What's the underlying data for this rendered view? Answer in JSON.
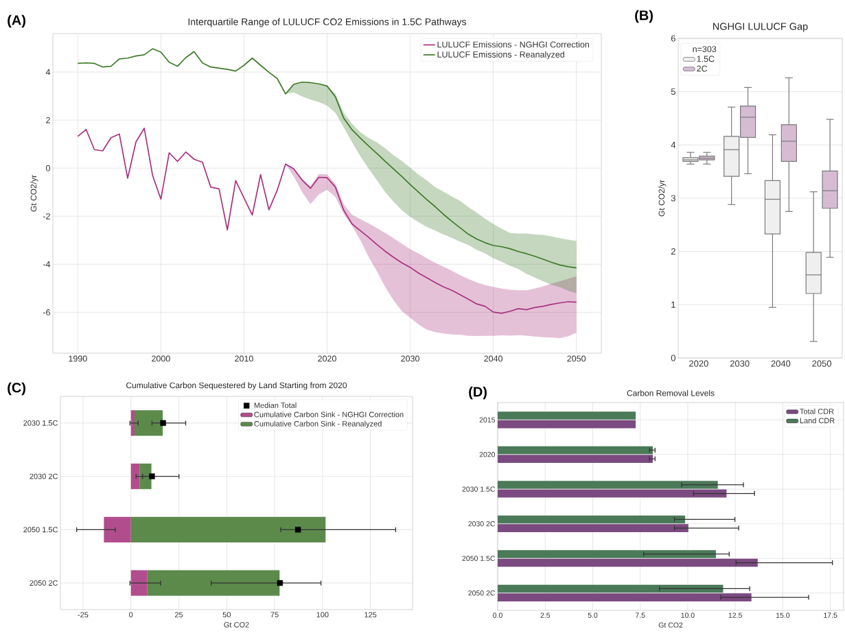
{
  "chart_data": [
    {
      "type": "line",
      "title": "Interquartile Range of LULUCF CO2 Emissions in 1.5C Pathways",
      "ylabel": "Gt CO2/yr",
      "annotations": [
        "(A)"
      ],
      "x": [
        1990,
        1991,
        1992,
        1993,
        1994,
        1995,
        1996,
        1997,
        1998,
        1999,
        2000,
        2001,
        2002,
        2003,
        2004,
        2005,
        2006,
        2007,
        2008,
        2009,
        2010,
        2011,
        2012,
        2013,
        2014,
        2015,
        2016,
        2017,
        2018,
        2019,
        2020,
        2021,
        2022,
        2023,
        2024,
        2025,
        2026,
        2027,
        2028,
        2029,
        2030,
        2031,
        2032,
        2033,
        2034,
        2035,
        2036,
        2037,
        2038,
        2039,
        2040,
        2041,
        2042,
        2043,
        2044,
        2045,
        2046,
        2047,
        2048,
        2049,
        2050
      ],
      "series": [
        {
          "name": "LULUCF Emissions - NGHGI Correction",
          "color": "#a8327e",
          "values": [
            1.32,
            1.61,
            0.77,
            0.72,
            1.27,
            1.42,
            -0.42,
            1.09,
            1.66,
            -0.3,
            -1.29,
            0.64,
            0.28,
            0.67,
            0.37,
            0.25,
            -0.79,
            -0.86,
            -2.57,
            -0.52,
            -1.24,
            -1.95,
            -0.27,
            -1.73,
            -0.92,
            0.17,
            -0.03,
            -0.5,
            -0.84,
            -0.38,
            -0.4,
            -0.79,
            -1.75,
            -2.32,
            -2.6,
            -2.88,
            -3.18,
            -3.46,
            -3.71,
            -3.94,
            -4.13,
            -4.37,
            -4.56,
            -4.76,
            -4.94,
            -5.08,
            -5.27,
            -5.45,
            -5.65,
            -5.75,
            -5.99,
            -6.04,
            -5.96,
            -5.85,
            -5.89,
            -5.8,
            -5.75,
            -5.67,
            -5.61,
            -5.56,
            -5.58
          ],
          "upper": [
            null,
            null,
            null,
            null,
            null,
            null,
            null,
            null,
            null,
            null,
            null,
            null,
            null,
            null,
            null,
            null,
            null,
            null,
            null,
            null,
            null,
            null,
            null,
            null,
            null,
            0.17,
            -0.03,
            -0.45,
            -0.75,
            -0.25,
            -0.26,
            -0.65,
            -1.5,
            -1.94,
            -2.12,
            -2.3,
            -2.49,
            -2.7,
            -2.92,
            -3.15,
            -3.37,
            -3.55,
            -3.75,
            -3.94,
            -4.1,
            -4.27,
            -4.45,
            -4.61,
            -4.75,
            -4.87,
            -4.94,
            -5.01,
            -5.06,
            -5.08,
            -5.08,
            -5.01,
            -4.92,
            -4.8,
            -4.71,
            -4.6,
            -4.5
          ],
          "lower": [
            null,
            null,
            null,
            null,
            null,
            null,
            null,
            null,
            null,
            null,
            null,
            null,
            null,
            null,
            null,
            null,
            null,
            null,
            null,
            null,
            null,
            null,
            null,
            null,
            null,
            0.17,
            -0.35,
            -1.0,
            -1.5,
            -1.1,
            -0.9,
            -1.2,
            -1.9,
            -2.4,
            -3.0,
            -3.7,
            -4.3,
            -4.95,
            -5.5,
            -5.95,
            -6.23,
            -6.5,
            -6.72,
            -6.82,
            -6.88,
            -6.92,
            -6.94,
            -6.98,
            -6.99,
            -6.98,
            -6.98,
            -6.96,
            -6.97,
            -6.95,
            -6.97,
            -7.01,
            -7.04,
            -7.05,
            -7.07,
            -7.0,
            -6.85
          ]
        },
        {
          "name": "LULUCF Emissions - Reanalyzed",
          "color": "#3f7a2a",
          "values": [
            4.36,
            4.38,
            4.36,
            4.21,
            4.24,
            4.55,
            4.58,
            4.67,
            4.72,
            4.97,
            4.83,
            4.41,
            4.24,
            4.6,
            4.85,
            4.38,
            4.21,
            4.16,
            4.11,
            4.04,
            4.28,
            4.58,
            4.28,
            3.99,
            3.73,
            3.09,
            3.49,
            3.58,
            3.56,
            3.51,
            3.42,
            2.97,
            2.08,
            1.6,
            1.25,
            0.92,
            0.61,
            0.28,
            -0.03,
            -0.35,
            -0.68,
            -1.0,
            -1.31,
            -1.6,
            -1.92,
            -2.21,
            -2.48,
            -2.75,
            -2.95,
            -3.1,
            -3.22,
            -3.27,
            -3.35,
            -3.47,
            -3.56,
            -3.67,
            -3.79,
            -3.92,
            -4.03,
            -4.1,
            -4.15
          ],
          "upper": [
            null,
            null,
            null,
            null,
            null,
            null,
            null,
            null,
            null,
            null,
            null,
            null,
            null,
            null,
            null,
            null,
            null,
            null,
            null,
            null,
            null,
            null,
            null,
            null,
            null,
            3.09,
            3.45,
            3.55,
            3.55,
            3.5,
            3.42,
            3.1,
            2.3,
            1.85,
            1.5,
            1.26,
            1.07,
            0.83,
            0.54,
            0.3,
            0.02,
            -0.27,
            -0.51,
            -0.79,
            -0.98,
            -1.18,
            -1.36,
            -1.62,
            -1.85,
            -2.1,
            -2.32,
            -2.52,
            -2.7,
            -2.72,
            -2.72,
            -2.76,
            -2.78,
            -2.84,
            -2.91,
            -2.98,
            -3.03
          ],
          "lower": [
            null,
            null,
            null,
            null,
            null,
            null,
            null,
            null,
            null,
            null,
            null,
            null,
            null,
            null,
            null,
            null,
            null,
            null,
            null,
            null,
            null,
            null,
            null,
            null,
            null,
            3.09,
            3.15,
            2.98,
            2.85,
            2.75,
            2.6,
            2.3,
            1.7,
            1.08,
            0.5,
            -0.02,
            -0.5,
            -1.0,
            -1.4,
            -1.75,
            -2.03,
            -2.25,
            -2.45,
            -2.6,
            -2.76,
            -2.9,
            -3.06,
            -3.2,
            -3.4,
            -3.55,
            -3.75,
            -3.9,
            -4.06,
            -4.2,
            -4.4,
            -4.55,
            -4.71,
            -4.85,
            -4.95,
            -5.1,
            -5.2
          ]
        }
      ],
      "xlim": [
        1987,
        2053
      ],
      "ylim": [
        -7.7,
        5.6
      ],
      "xticks": [
        1990,
        2000,
        2010,
        2020,
        2030,
        2040,
        2050
      ],
      "yticks": [
        -6,
        -4,
        -2,
        0,
        2,
        4
      ],
      "grid": true,
      "legend": "top right"
    },
    {
      "type": "box",
      "title": "NGHGI LULUCF Gap",
      "ylabel": "Gt CO2/yr",
      "annotations": [
        "(B)"
      ],
      "categories": [
        "2020",
        "2030",
        "2040",
        "2050"
      ],
      "legend_title": "n=303",
      "series": [
        {
          "name": "1.5C",
          "color": "#efefef",
          "boxes": [
            {
              "low": 3.64,
              "q1": 3.69,
              "median": 3.72,
              "q3": 3.76,
              "high": 3.86
            },
            {
              "low": 2.88,
              "q1": 3.41,
              "median": 3.91,
              "q3": 4.16,
              "high": 4.71
            },
            {
              "low": 0.95,
              "q1": 2.33,
              "median": 2.98,
              "q3": 3.33,
              "high": 4.19
            },
            {
              "low": 0.31,
              "q1": 1.21,
              "median": 1.56,
              "q3": 1.98,
              "high": 3.12
            }
          ]
        },
        {
          "name": "2C",
          "color": "#d5bcd3",
          "boxes": [
            {
              "low": 3.64,
              "q1": 3.72,
              "median": 3.75,
              "q3": 3.79,
              "high": 3.86
            },
            {
              "low": 3.46,
              "q1": 4.14,
              "median": 4.52,
              "q3": 4.73,
              "high": 5.08
            },
            {
              "low": 2.75,
              "q1": 3.69,
              "median": 4.07,
              "q3": 4.38,
              "high": 5.26
            },
            {
              "low": 1.89,
              "q1": 2.81,
              "median": 3.14,
              "q3": 3.51,
              "high": 4.48
            }
          ]
        }
      ],
      "ylim": [
        0,
        6
      ],
      "yticks": [
        0,
        1,
        2,
        3,
        4,
        5,
        6
      ],
      "grid": "y",
      "legend": "top left"
    },
    {
      "type": "bar",
      "orientation": "horizontal",
      "stacked": true,
      "title": "Cumulative Carbon Sequestered by Land Starting from 2020",
      "xlabel": "Gt CO2",
      "annotations": [
        "(C)"
      ],
      "categories": [
        "2030 1.5C",
        "2030 2C",
        "2050 1.5C",
        "2050 2C"
      ],
      "series": [
        {
          "name": "Median Total",
          "type": "scatter",
          "marker": "square",
          "color": "#000000",
          "x": [
            "2030 1.5C",
            "2030 2C",
            "2050 1.5C",
            "2050 2C"
          ],
          "values": [
            16.8,
            11.0,
            87.2,
            77.8
          ],
          "errors": [
            [
              11.0,
              28.6
            ],
            [
              6.0,
              25.1
            ],
            [
              78.2,
              138.2
            ],
            [
              41.9,
              99.2
            ]
          ]
        },
        {
          "name": "Cumulative Carbon Sink - NGHGI Correction",
          "color": "#b24d8d",
          "values": [
            1.9,
            4.5,
            -14.1,
            8.6
          ],
          "errors": [
            [
              -0.5,
              3.8
            ],
            [
              2.7,
              6.1
            ],
            [
              -28.3,
              -8.2
            ],
            [
              -0.5,
              15.5
            ]
          ]
        },
        {
          "name": "Cumulative Carbon Sink - Reanalyzed",
          "color": "#5b8a4b",
          "values": [
            14.7,
            6.2,
            101.6,
            69.0
          ]
        }
      ],
      "xlim": [
        -36.8,
        147
      ],
      "xticks": [
        -25,
        0,
        25,
        50,
        75,
        100,
        125
      ],
      "grid": true,
      "legend": "top right"
    },
    {
      "type": "bar",
      "orientation": "horizontal",
      "title": "Carbon Removal Levels",
      "xlabel": "Gt CO2",
      "annotations": [
        "(D)"
      ],
      "categories": [
        "2015",
        "2020",
        "2030 1.5C",
        "2030 2C",
        "2050 1.5C",
        "2050 2C"
      ],
      "series": [
        {
          "name": "Total CDR",
          "color": "#7b4a80",
          "values": [
            7.26,
            8.16,
            12.04,
            10.03,
            13.68,
            13.35
          ],
          "errors": [
            null,
            [
              7.99,
              8.28
            ],
            [
              10.3,
              13.51
            ],
            [
              9.3,
              12.68
            ],
            [
              12.54,
              17.61
            ],
            [
              11.74,
              16.36
            ]
          ]
        },
        {
          "name": "Land CDR",
          "color": "#4b7a59",
          "values": [
            7.26,
            8.16,
            11.58,
            9.86,
            11.48,
            11.86
          ],
          "errors": [
            null,
            [
              7.99,
              8.28
            ],
            [
              9.68,
              12.93
            ],
            [
              9.3,
              12.48
            ],
            [
              7.68,
              12.18
            ],
            [
              8.51,
              13.26
            ]
          ]
        }
      ],
      "xlim": [
        0,
        18.2
      ],
      "xticks": [
        {
          "value": 0,
          "label": "0.0"
        },
        2.5,
        {
          "value": 5,
          "label": "5.0"
        },
        7.5,
        {
          "value": 10,
          "label": "10.0"
        },
        12.5,
        {
          "value": 15,
          "label": "15.0"
        },
        17.5
      ],
      "grid": true,
      "legend": "top right"
    }
  ]
}
